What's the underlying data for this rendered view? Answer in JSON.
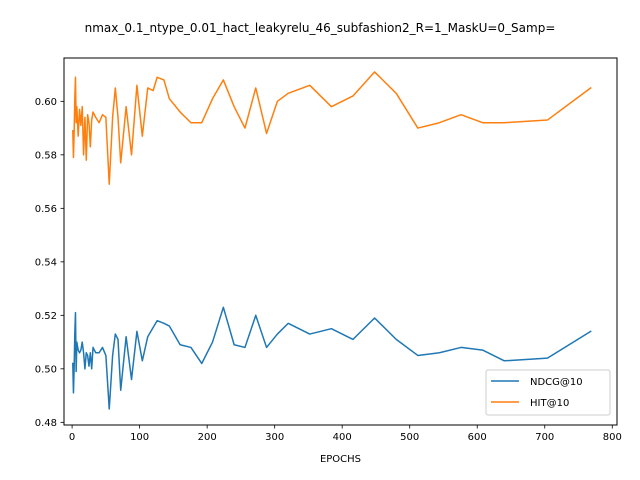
{
  "chart_data": {
    "type": "line",
    "title": "nmax_0.1_ntype_0.01_hact_leakyrelu_46_subfashion2_R=1_MaskU=0_Samp=",
    "xlabel": "EPOCHS",
    "ylabel": "",
    "xlim": [
      -12,
      807
    ],
    "ylim": [
      0.479,
      0.6162
    ],
    "xticks": [
      0,
      100,
      200,
      300,
      400,
      500,
      600,
      700,
      800
    ],
    "yticks": [
      0.48,
      0.5,
      0.52,
      0.54,
      0.56,
      0.58,
      0.6
    ],
    "ytick_labels": [
      "0.48",
      "0.50",
      "0.52",
      "0.54",
      "0.56",
      "0.58",
      "0.60"
    ],
    "legend_position": "lower-right",
    "grid": false,
    "series": [
      {
        "name": "NDCG@10",
        "color": "#1f77b4",
        "points": [
          [
            1,
            0.502
          ],
          [
            2,
            0.491
          ],
          [
            3,
            0.5
          ],
          [
            4,
            0.513
          ],
          [
            5,
            0.521
          ],
          [
            6,
            0.499
          ],
          [
            7,
            0.51
          ],
          [
            9,
            0.507
          ],
          [
            11,
            0.506
          ],
          [
            13,
            0.507
          ],
          [
            15,
            0.51
          ],
          [
            17,
            0.506
          ],
          [
            19,
            0.5
          ],
          [
            21,
            0.506
          ],
          [
            23,
            0.505
          ],
          [
            25,
            0.501
          ],
          [
            27,
            0.506
          ],
          [
            29,
            0.5
          ],
          [
            31,
            0.508
          ],
          [
            35,
            0.506
          ],
          [
            40,
            0.506
          ],
          [
            45,
            0.508
          ],
          [
            50,
            0.505
          ],
          [
            55,
            0.485
          ],
          [
            60,
            0.505
          ],
          [
            64,
            0.513
          ],
          [
            68,
            0.511
          ],
          [
            72,
            0.492
          ],
          [
            80,
            0.512
          ],
          [
            88,
            0.496
          ],
          [
            96,
            0.514
          ],
          [
            104,
            0.503
          ],
          [
            112,
            0.512
          ],
          [
            126,
            0.518
          ],
          [
            136,
            0.517
          ],
          [
            144,
            0.516
          ],
          [
            160,
            0.509
          ],
          [
            176,
            0.508
          ],
          [
            192,
            0.502
          ],
          [
            208,
            0.51
          ],
          [
            224,
            0.523
          ],
          [
            240,
            0.509
          ],
          [
            256,
            0.508
          ],
          [
            272,
            0.52
          ],
          [
            288,
            0.508
          ],
          [
            304,
            0.513
          ],
          [
            320,
            0.517
          ],
          [
            352,
            0.513
          ],
          [
            384,
            0.515
          ],
          [
            416,
            0.511
          ],
          [
            448,
            0.519
          ],
          [
            480,
            0.511
          ],
          [
            512,
            0.505
          ],
          [
            544,
            0.506
          ],
          [
            576,
            0.508
          ],
          [
            608,
            0.507
          ],
          [
            640,
            0.503
          ],
          [
            704,
            0.504
          ],
          [
            768,
            0.514
          ]
        ]
      },
      {
        "name": "HIT@10",
        "color": "#ff7f0e",
        "points": [
          [
            1,
            0.589
          ],
          [
            2,
            0.579
          ],
          [
            3,
            0.588
          ],
          [
            4,
            0.601
          ],
          [
            5,
            0.609
          ],
          [
            6,
            0.592
          ],
          [
            7,
            0.598
          ],
          [
            9,
            0.587
          ],
          [
            11,
            0.597
          ],
          [
            13,
            0.591
          ],
          [
            15,
            0.598
          ],
          [
            17,
            0.58
          ],
          [
            19,
            0.594
          ],
          [
            21,
            0.578
          ],
          [
            23,
            0.595
          ],
          [
            25,
            0.592
          ],
          [
            27,
            0.583
          ],
          [
            29,
            0.593
          ],
          [
            31,
            0.596
          ],
          [
            35,
            0.594
          ],
          [
            40,
            0.592
          ],
          [
            45,
            0.595
          ],
          [
            50,
            0.594
          ],
          [
            55,
            0.569
          ],
          [
            60,
            0.594
          ],
          [
            64,
            0.605
          ],
          [
            68,
            0.594
          ],
          [
            72,
            0.577
          ],
          [
            80,
            0.598
          ],
          [
            88,
            0.58
          ],
          [
            96,
            0.606
          ],
          [
            104,
            0.587
          ],
          [
            112,
            0.605
          ],
          [
            120,
            0.604
          ],
          [
            126,
            0.609
          ],
          [
            136,
            0.608
          ],
          [
            144,
            0.601
          ],
          [
            160,
            0.596
          ],
          [
            176,
            0.592
          ],
          [
            192,
            0.592
          ],
          [
            208,
            0.601
          ],
          [
            224,
            0.608
          ],
          [
            240,
            0.598
          ],
          [
            256,
            0.59
          ],
          [
            272,
            0.605
          ],
          [
            288,
            0.588
          ],
          [
            304,
            0.6
          ],
          [
            320,
            0.603
          ],
          [
            352,
            0.606
          ],
          [
            384,
            0.598
          ],
          [
            416,
            0.602
          ],
          [
            448,
            0.611
          ],
          [
            480,
            0.603
          ],
          [
            512,
            0.59
          ],
          [
            544,
            0.592
          ],
          [
            576,
            0.595
          ],
          [
            608,
            0.592
          ],
          [
            640,
            0.592
          ],
          [
            704,
            0.593
          ],
          [
            768,
            0.605
          ]
        ]
      }
    ]
  }
}
